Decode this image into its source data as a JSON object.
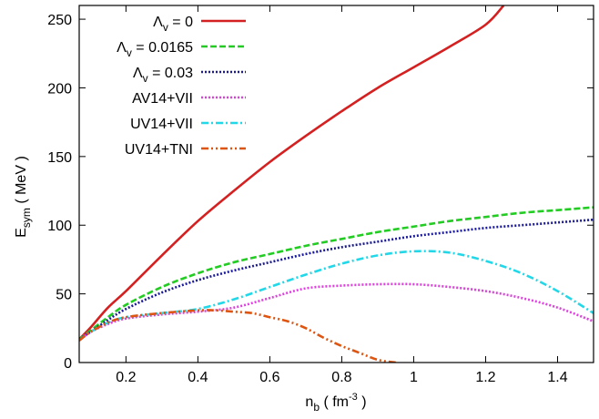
{
  "chart_data": {
    "type": "line",
    "title": "",
    "xlabel": {
      "main": "n",
      "sub": "b",
      "rest": " ( fm",
      "sup": "-3",
      "close": " )"
    },
    "ylabel": {
      "main": "E",
      "sub": "sym",
      "rest": " ( MeV )"
    },
    "xlim": [
      0.07,
      1.5
    ],
    "ylim": [
      0,
      260
    ],
    "xticks": [
      0.2,
      0.4,
      0.6,
      0.8,
      1.0,
      1.2,
      1.4
    ],
    "xtick_labels": [
      "0.2",
      "0.4",
      "0.6",
      "0.8",
      "1",
      "1.2",
      "1.4"
    ],
    "yticks": [
      0,
      50,
      100,
      150,
      200,
      250
    ],
    "ytick_labels": [
      "0",
      "50",
      "100",
      "150",
      "200",
      "250"
    ],
    "grid": false,
    "legend_position": "top-left",
    "series": [
      {
        "name": "Λv = 0",
        "label": {
          "main": "Λ",
          "sub": "v",
          "rest": " = 0"
        },
        "color": "#d42020",
        "dash": "solid",
        "x": [
          0.07,
          0.1,
          0.15,
          0.2,
          0.3,
          0.4,
          0.5,
          0.6,
          0.7,
          0.8,
          0.9,
          1.0,
          1.1,
          1.2,
          1.25
        ],
        "y": [
          17,
          25,
          40,
          52,
          78,
          103,
          125,
          146,
          165,
          183,
          200,
          215,
          230,
          246,
          260
        ]
      },
      {
        "name": "Λv = 0.0165",
        "label": {
          "main": "Λ",
          "sub": "v",
          "rest": " = 0.0165"
        },
        "color": "#22cc22",
        "dash": "dashed",
        "x": [
          0.07,
          0.1,
          0.15,
          0.2,
          0.3,
          0.4,
          0.5,
          0.6,
          0.7,
          0.8,
          0.9,
          1.0,
          1.1,
          1.2,
          1.3,
          1.4,
          1.5
        ],
        "y": [
          17,
          23,
          33,
          42,
          55,
          65,
          73,
          79,
          85,
          90,
          95,
          99,
          103,
          106,
          109,
          111,
          113
        ]
      },
      {
        "name": "Λv = 0.03",
        "label": {
          "main": "Λ",
          "sub": "v",
          "rest": " = 0.03"
        },
        "color": "#1a1a99",
        "dash": "dotted",
        "x": [
          0.07,
          0.1,
          0.15,
          0.2,
          0.3,
          0.4,
          0.5,
          0.6,
          0.7,
          0.8,
          0.9,
          1.0,
          1.1,
          1.2,
          1.3,
          1.4,
          1.5
        ],
        "y": [
          17,
          22,
          31,
          39,
          51,
          60,
          67,
          73,
          79,
          84,
          88,
          92,
          95,
          98,
          100,
          102,
          104
        ]
      },
      {
        "name": "AV14+VII",
        "label": {
          "main": "AV14+VII",
          "sub": "",
          "rest": ""
        },
        "color": "#e040e0",
        "dash": "dotted",
        "x": [
          0.07,
          0.1,
          0.15,
          0.2,
          0.3,
          0.4,
          0.5,
          0.6,
          0.7,
          0.8,
          0.9,
          1.0,
          1.1,
          1.2,
          1.3,
          1.4,
          1.5
        ],
        "y": [
          16,
          22,
          28,
          32,
          35,
          37,
          40,
          47,
          54,
          56,
          57,
          57,
          55,
          52,
          47,
          40,
          30
        ]
      },
      {
        "name": "UV14+VII",
        "label": {
          "main": "UV14+VII",
          "sub": "",
          "rest": ""
        },
        "color": "#22d8e8",
        "dash": "dashdot",
        "x": [
          0.07,
          0.1,
          0.15,
          0.2,
          0.3,
          0.4,
          0.5,
          0.6,
          0.7,
          0.8,
          0.9,
          1.0,
          1.1,
          1.2,
          1.3,
          1.4,
          1.5
        ],
        "y": [
          16,
          22,
          29,
          33,
          36,
          39,
          46,
          55,
          64,
          72,
          78,
          81,
          80,
          74,
          65,
          52,
          36
        ]
      },
      {
        "name": "UV14+TNI",
        "label": {
          "main": "UV14+TNI",
          "sub": "",
          "rest": ""
        },
        "color": "#dd5511",
        "dash": "dashdotdot",
        "x": [
          0.07,
          0.1,
          0.15,
          0.2,
          0.3,
          0.4,
          0.45,
          0.5,
          0.55,
          0.6,
          0.65,
          0.7,
          0.75,
          0.8,
          0.85,
          0.9,
          0.95
        ],
        "y": [
          16,
          22,
          29,
          33,
          36,
          38,
          38,
          37,
          36,
          33,
          30,
          25,
          18,
          12,
          7,
          2,
          0
        ]
      }
    ]
  }
}
